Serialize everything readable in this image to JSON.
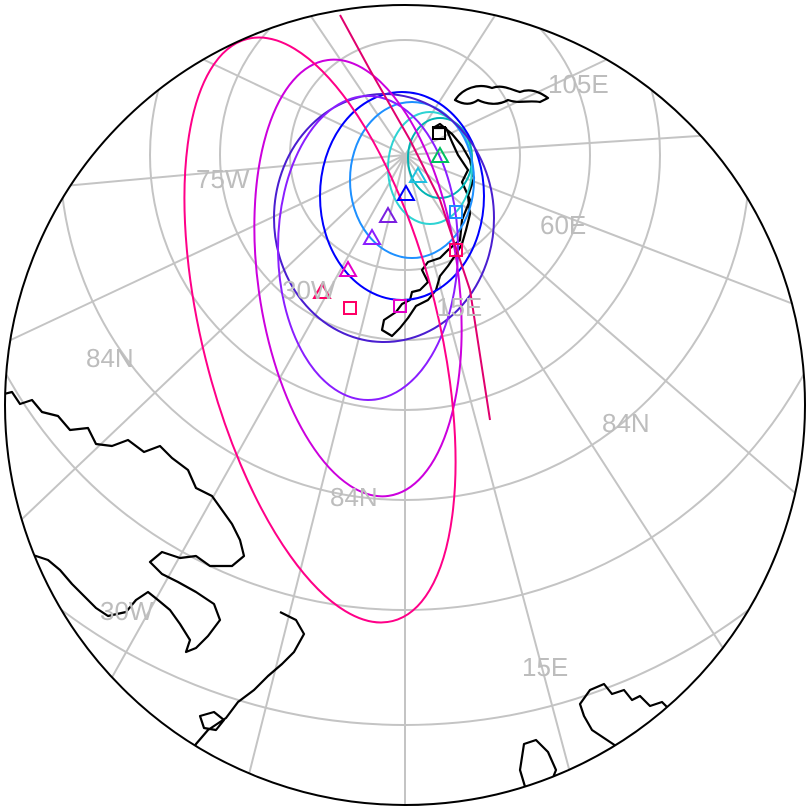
{
  "map": {
    "projection": "polar azimuthal (north pole)",
    "background": "#ffffff",
    "grid_color": "#c4c4c4",
    "coast_color": "#000000",
    "labels": {
      "lon_105e": "105E",
      "lon_75w": "75W",
      "lon_60e": "60E",
      "lon_30w_inner": "30W",
      "lon_15e_inner": "15E",
      "lat_84n_left": "84N",
      "lat_84n_right": "84N",
      "lat_84n_center": "84N",
      "lon_30w_outer": "30W",
      "lon_15e_outer": "15E"
    },
    "tracks": [
      {
        "color": "#00b3b3",
        "marker": "square"
      },
      {
        "color": "#2ed3d3",
        "marker": "triangle"
      },
      {
        "color": "#1e90ff",
        "marker": "square"
      },
      {
        "color": "#0000ff",
        "marker": "triangle"
      },
      {
        "color": "#7b1fe0",
        "marker": "triangle"
      },
      {
        "color": "#c000ff",
        "marker": "triangle"
      },
      {
        "color": "#e400c8",
        "marker": "square"
      },
      {
        "color": "#ff0066",
        "marker": "square"
      }
    ]
  }
}
